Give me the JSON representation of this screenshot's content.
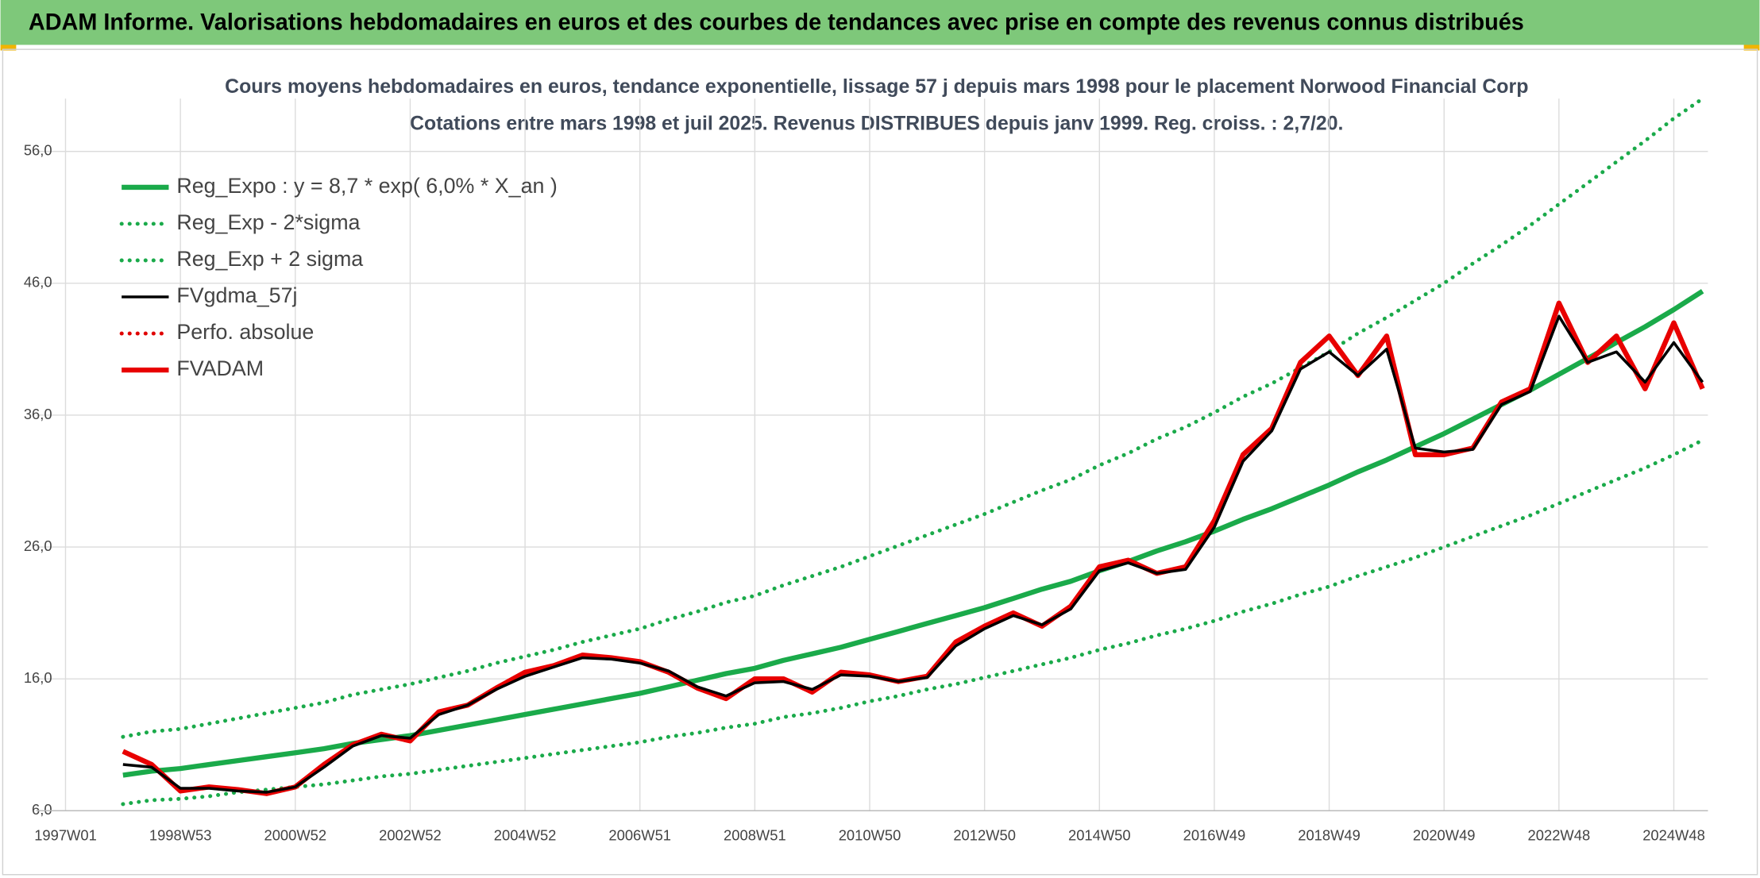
{
  "header": {
    "title": "ADAM Informe. Valorisations hebdomadaires en euros et des courbes de tendances avec prise en compte des revenus connus distribués"
  },
  "chart_data": {
    "type": "line",
    "title": "Cours moyens hebdomadaires en euros, tendance exponentielle, lissage 57 j depuis mars 1998 pour le placement Norwood Financial Corp",
    "subtitle": "Cotations entre mars 1998 et juil 2025. Revenus DISTRIBUES depuis janv 1999. Reg. croiss. : 2,7/20.",
    "legend": "upper left",
    "grid": true,
    "categories": [
      "1997W01",
      null,
      null,
      null,
      "1998W53",
      null,
      null,
      null,
      "2000W52",
      null,
      null,
      null,
      "2002W52",
      null,
      null,
      null,
      "2004W52",
      null,
      null,
      null,
      "2006W51",
      null,
      null,
      null,
      "2008W51",
      null,
      null,
      null,
      "2010W50",
      null,
      null,
      null,
      "2012W50",
      null,
      null,
      null,
      "2014W50",
      null,
      null,
      null,
      "2016W49",
      null,
      null,
      null,
      "2018W49",
      null,
      null,
      null,
      "2020W49",
      null,
      null,
      null,
      "2022W48",
      null,
      null,
      null,
      "2024W48",
      null
    ],
    "ylim": [
      6,
      60
    ],
    "yticks": [
      {
        "value": 6,
        "label": "6,0"
      },
      {
        "value": 16,
        "label": "16,0"
      },
      {
        "value": 26,
        "label": "26,0"
      },
      {
        "value": 36,
        "label": "36,0"
      },
      {
        "value": 46,
        "label": "46,0"
      },
      {
        "value": 56,
        "label": "56,0"
      }
    ],
    "series": [
      {
        "name": "Reg_Expo : y = 8,7 * exp( 6,0% *  X_an )",
        "color": "#1aaa4a",
        "style": "solid-thick",
        "values": [
          null,
          null,
          8.7,
          9.0,
          9.2,
          9.5,
          9.8,
          10.1,
          10.4,
          10.7,
          11.1,
          11.4,
          11.7,
          12.1,
          12.5,
          12.9,
          13.3,
          13.7,
          14.1,
          14.5,
          14.9,
          15.4,
          15.9,
          16.4,
          16.8,
          17.4,
          17.9,
          18.4,
          19.0,
          19.6,
          20.2,
          20.8,
          21.4,
          22.1,
          22.8,
          23.4,
          24.2,
          24.9,
          25.7,
          26.4,
          27.2,
          28.1,
          28.9,
          29.8,
          30.7,
          31.7,
          32.6,
          33.6,
          34.6,
          35.7,
          36.8,
          37.9,
          39.1,
          40.3,
          41.5,
          42.7,
          44.0,
          45.4
        ]
      },
      {
        "name": "Reg_Exp - 2*sigma",
        "color": "#1aaa4a",
        "style": "dotted",
        "values": [
          null,
          null,
          6.5,
          6.8,
          6.9,
          7.1,
          7.4,
          7.6,
          7.8,
          8.0,
          8.3,
          8.6,
          8.8,
          9.1,
          9.4,
          9.7,
          10.0,
          10.3,
          10.6,
          10.9,
          11.2,
          11.6,
          11.9,
          12.3,
          12.6,
          13.1,
          13.4,
          13.8,
          14.3,
          14.7,
          15.2,
          15.6,
          16.1,
          16.6,
          17.1,
          17.6,
          18.2,
          18.7,
          19.3,
          19.8,
          20.4,
          21.1,
          21.7,
          22.4,
          23.0,
          23.8,
          24.5,
          25.2,
          26.0,
          26.8,
          27.6,
          28.4,
          29.3,
          30.2,
          31.1,
          32.0,
          33.0,
          34.1
        ]
      },
      {
        "name": "Reg_Exp + 2 sigma",
        "color": "#1aaa4a",
        "style": "dotted",
        "values": [
          null,
          null,
          11.6,
          12.0,
          12.2,
          12.6,
          13.0,
          13.4,
          13.8,
          14.2,
          14.8,
          15.2,
          15.6,
          16.1,
          16.6,
          17.2,
          17.7,
          18.2,
          18.8,
          19.3,
          19.8,
          20.5,
          21.1,
          21.8,
          22.3,
          23.1,
          23.8,
          24.5,
          25.3,
          26.1,
          26.9,
          27.7,
          28.5,
          29.4,
          30.3,
          31.1,
          32.2,
          33.1,
          34.2,
          35.1,
          36.2,
          37.4,
          38.4,
          39.6,
          40.8,
          42.2,
          43.4,
          44.7,
          46.0,
          47.5,
          48.9,
          50.4,
          52.0,
          53.6,
          55.2,
          56.8,
          58.5,
          60.0
        ]
      },
      {
        "name": "FVgdma_57j",
        "color": "#000000",
        "style": "solid",
        "values": [
          null,
          null,
          9.5,
          9.3,
          7.7,
          7.7,
          7.5,
          7.4,
          7.8,
          9.3,
          10.9,
          11.7,
          11.5,
          13.3,
          14.0,
          15.2,
          16.2,
          16.9,
          17.6,
          17.5,
          17.2,
          16.6,
          15.4,
          14.7,
          15.7,
          15.8,
          15.2,
          16.3,
          16.2,
          15.8,
          16.1,
          18.5,
          19.8,
          20.8,
          20.1,
          21.3,
          24.2,
          24.8,
          24.0,
          24.3,
          27.5,
          32.5,
          34.8,
          39.5,
          40.8,
          39.0,
          41.0,
          33.5,
          33.2,
          33.4,
          36.8,
          37.8,
          43.5,
          40.0,
          40.8,
          38.5,
          41.5,
          38.5
        ]
      },
      {
        "name": "Perfo. absolue",
        "color": "#e00000",
        "style": "dotted",
        "values": [
          null,
          null,
          null,
          null,
          null,
          null,
          null,
          null,
          null,
          null,
          null,
          null,
          null,
          null,
          null,
          null,
          null,
          null,
          null,
          null,
          null,
          null,
          null,
          null,
          null,
          null,
          null,
          null,
          null,
          null,
          null,
          null,
          null,
          null,
          null,
          null,
          null,
          null,
          null,
          null,
          null,
          null,
          null,
          null,
          null,
          null,
          null,
          null,
          null,
          null,
          null,
          null,
          null,
          null,
          null,
          null,
          null,
          null
        ]
      },
      {
        "name": "FVADAM",
        "color": "#e80000",
        "style": "solid-thick",
        "values": [
          null,
          null,
          10.5,
          9.5,
          7.5,
          7.8,
          7.6,
          7.3,
          7.8,
          9.5,
          11.0,
          11.8,
          11.3,
          13.5,
          14.0,
          15.3,
          16.5,
          17.0,
          17.8,
          17.6,
          17.3,
          16.5,
          15.3,
          14.5,
          16.0,
          16.0,
          15.0,
          16.5,
          16.3,
          15.8,
          16.2,
          18.8,
          20.0,
          21.0,
          20.0,
          21.5,
          24.5,
          25.0,
          24.0,
          24.5,
          28.0,
          33.0,
          35.0,
          40.0,
          42.0,
          39.0,
          42.0,
          33.0,
          33.0,
          33.5,
          37.0,
          38.0,
          44.5,
          40.0,
          42.0,
          38.0,
          43.0,
          38.0
        ]
      }
    ]
  }
}
